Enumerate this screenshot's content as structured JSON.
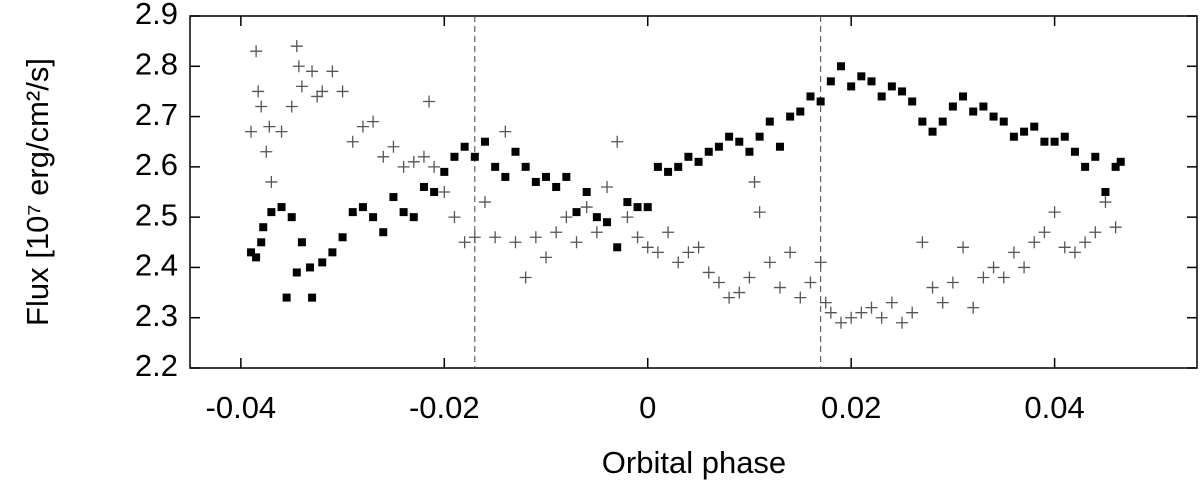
{
  "chart_data": {
    "type": "scatter",
    "xlabel": "Orbital phase",
    "ylabel": "Flux [10⁷ erg/cm²/s]",
    "xlim": [
      -0.045,
      0.054
    ],
    "xticks": [
      -0.04,
      -0.02,
      0,
      0.02,
      0.04
    ],
    "ylim": [
      2.2,
      2.9
    ],
    "yticks": [
      2.2,
      2.3,
      2.4,
      2.5,
      2.6,
      2.7,
      2.8,
      2.9
    ],
    "vlines": [
      -0.017,
      0.017
    ],
    "series": [
      {
        "marker": "square",
        "color": "#000000",
        "x": [
          -0.039,
          -0.0385,
          -0.038,
          -0.0378,
          -0.037,
          -0.036,
          -0.035,
          -0.034,
          -0.0345,
          -0.0355,
          -0.033,
          -0.0332,
          -0.032,
          -0.031,
          -0.03,
          -0.029,
          -0.028,
          -0.027,
          -0.026,
          -0.025,
          -0.024,
          -0.023,
          -0.022,
          -0.021,
          -0.02,
          -0.019,
          -0.018,
          -0.017,
          -0.016,
          -0.015,
          -0.014,
          -0.013,
          -0.012,
          -0.011,
          -0.01,
          -0.009,
          -0.008,
          -0.007,
          -0.006,
          -0.005,
          -0.004,
          -0.003,
          -0.002,
          -0.001,
          0,
          0.001,
          0.002,
          0.003,
          0.004,
          0.005,
          0.006,
          0.007,
          0.008,
          0.009,
          0.01,
          0.011,
          0.012,
          0.013,
          0.014,
          0.015,
          0.016,
          0.017,
          0.018,
          0.019,
          0.02,
          0.021,
          0.022,
          0.023,
          0.024,
          0.025,
          0.026,
          0.027,
          0.028,
          0.029,
          0.03,
          0.031,
          0.032,
          0.033,
          0.034,
          0.035,
          0.036,
          0.037,
          0.038,
          0.039,
          0.04,
          0.041,
          0.042,
          0.043,
          0.044,
          0.045,
          0.046,
          0.0465
        ],
        "y": [
          2.43,
          2.42,
          2.45,
          2.48,
          2.51,
          2.52,
          2.5,
          2.45,
          2.39,
          2.34,
          2.34,
          2.4,
          2.41,
          2.43,
          2.46,
          2.51,
          2.52,
          2.5,
          2.47,
          2.54,
          2.51,
          2.5,
          2.56,
          2.55,
          2.59,
          2.62,
          2.64,
          2.62,
          2.65,
          2.6,
          2.58,
          2.63,
          2.6,
          2.57,
          2.58,
          2.56,
          2.58,
          2.51,
          2.55,
          2.5,
          2.49,
          2.44,
          2.53,
          2.52,
          2.52,
          2.6,
          2.59,
          2.6,
          2.62,
          2.61,
          2.63,
          2.64,
          2.66,
          2.65,
          2.63,
          2.66,
          2.69,
          2.64,
          2.7,
          2.71,
          2.74,
          2.73,
          2.77,
          2.8,
          2.76,
          2.78,
          2.77,
          2.74,
          2.76,
          2.75,
          2.73,
          2.69,
          2.67,
          2.69,
          2.72,
          2.74,
          2.71,
          2.72,
          2.7,
          2.69,
          2.66,
          2.67,
          2.68,
          2.65,
          2.65,
          2.66,
          2.63,
          2.6,
          2.62,
          2.55,
          2.6,
          2.61
        ]
      },
      {
        "marker": "plus",
        "color": "#555555",
        "x": [
          -0.039,
          -0.0385,
          -0.0383,
          -0.038,
          -0.0375,
          -0.0372,
          -0.037,
          -0.036,
          -0.035,
          -0.0345,
          -0.0343,
          -0.034,
          -0.033,
          -0.0325,
          -0.032,
          -0.031,
          -0.03,
          -0.029,
          -0.028,
          -0.027,
          -0.026,
          -0.025,
          -0.024,
          -0.023,
          -0.022,
          -0.0215,
          -0.021,
          -0.02,
          -0.019,
          -0.018,
          -0.017,
          -0.016,
          -0.015,
          -0.014,
          -0.013,
          -0.012,
          -0.011,
          -0.01,
          -0.009,
          -0.008,
          -0.007,
          -0.006,
          -0.005,
          -0.004,
          -0.003,
          -0.002,
          -0.001,
          0,
          0.001,
          0.002,
          0.003,
          0.004,
          0.005,
          0.006,
          0.007,
          0.008,
          0.009,
          0.01,
          0.0105,
          0.011,
          0.012,
          0.013,
          0.014,
          0.015,
          0.016,
          0.017,
          0.0175,
          0.018,
          0.019,
          0.02,
          0.021,
          0.022,
          0.023,
          0.024,
          0.025,
          0.026,
          0.027,
          0.028,
          0.029,
          0.03,
          0.031,
          0.032,
          0.033,
          0.034,
          0.035,
          0.036,
          0.037,
          0.038,
          0.039,
          0.04,
          0.041,
          0.042,
          0.043,
          0.044,
          0.045,
          0.046
        ],
        "y": [
          2.67,
          2.83,
          2.75,
          2.72,
          2.63,
          2.68,
          2.57,
          2.67,
          2.72,
          2.84,
          2.8,
          2.76,
          2.79,
          2.74,
          2.75,
          2.79,
          2.75,
          2.65,
          2.68,
          2.69,
          2.62,
          2.64,
          2.6,
          2.61,
          2.62,
          2.73,
          2.6,
          2.55,
          2.5,
          2.45,
          2.46,
          2.53,
          2.46,
          2.67,
          2.45,
          2.38,
          2.46,
          2.42,
          2.47,
          2.5,
          2.45,
          2.52,
          2.47,
          2.56,
          2.65,
          2.5,
          2.46,
          2.44,
          2.43,
          2.47,
          2.41,
          2.43,
          2.44,
          2.39,
          2.37,
          2.34,
          2.35,
          2.38,
          2.57,
          2.51,
          2.41,
          2.36,
          2.43,
          2.34,
          2.37,
          2.41,
          2.33,
          2.31,
          2.29,
          2.3,
          2.31,
          2.32,
          2.3,
          2.33,
          2.29,
          2.31,
          2.45,
          2.36,
          2.33,
          2.37,
          2.44,
          2.32,
          2.38,
          2.4,
          2.38,
          2.43,
          2.4,
          2.45,
          2.47,
          2.51,
          2.44,
          2.43,
          2.45,
          2.47,
          2.53,
          2.48
        ]
      }
    ]
  }
}
